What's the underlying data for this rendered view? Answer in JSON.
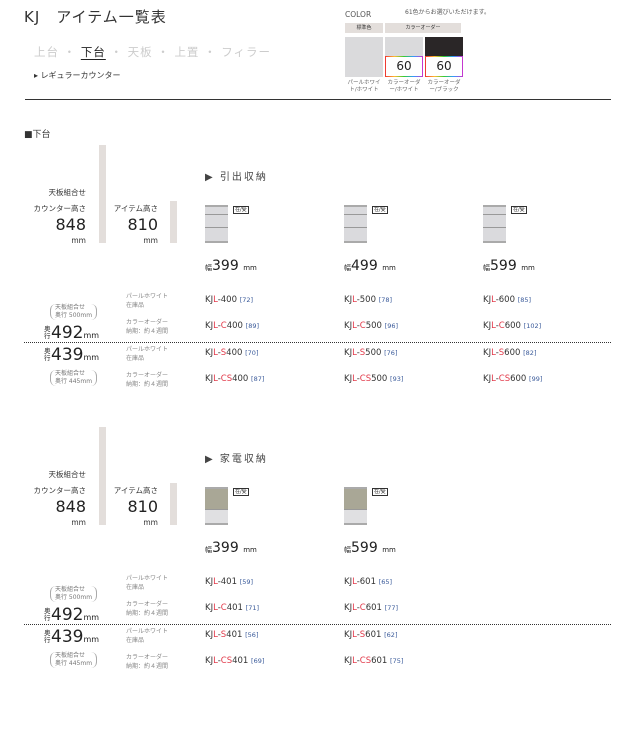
{
  "header": {
    "title": "KJ　アイテム一覧表",
    "nav": [
      "上台",
      "下台",
      "天板",
      "上置",
      "フィラー"
    ],
    "nav_active": 1,
    "subcategory": "レギュラーカウンター"
  },
  "color": {
    "label": "COLOR",
    "note": "61色からお選びいただけます。",
    "standard_header": "標準色",
    "order_header": "カラーオーダー",
    "swatches": [
      {
        "caption": "パールホワイト/ホワイト",
        "color": "#dadadc",
        "number": ""
      },
      {
        "caption": "カラーオーダー/ホワイト",
        "color": "#dadadc",
        "number": "60"
      },
      {
        "caption": "カラーオーダー/ブラック",
        "color": "#2a2627",
        "number": "60"
      }
    ]
  },
  "section_title": "■下台",
  "common": {
    "combo": "天板組合せ",
    "counter_height_label": "カウンター高さ",
    "counter_height": "848",
    "item_height_label": "アイテム高さ",
    "item_height": "810",
    "mm": "mm",
    "width_prefix": "幅",
    "badge": "在/受",
    "pearl": "パールホワイト",
    "stock": "在庫品",
    "order": "カラーオーダー",
    "lead": "納期：約４週間",
    "depth_kanji": "奥行",
    "depth1": "492",
    "depth1_note": [
      "天板組合せ",
      "奥行 500mm"
    ],
    "depth2": "439",
    "depth2_note": [
      "天板組合せ",
      "奥行 445mm"
    ]
  },
  "groups": [
    {
      "category": "▶ 引出収納",
      "type": "drawer",
      "widths": [
        "399",
        "499",
        "599"
      ],
      "rows": [
        [
          [
            "KJL-400",
            "72"
          ],
          [
            "KJL-500",
            "78"
          ],
          [
            "KJL-600",
            "85"
          ]
        ],
        [
          [
            "KJL-C400",
            "89"
          ],
          [
            "KJL-C500",
            "96"
          ],
          [
            "KJL-C600",
            "102"
          ]
        ],
        [
          [
            "KJL-S400",
            "70"
          ],
          [
            "KJL-S500",
            "76"
          ],
          [
            "KJL-S600",
            "82"
          ]
        ],
        [
          [
            "KJL-CS400",
            "87"
          ],
          [
            "KJL-CS500",
            "93"
          ],
          [
            "KJL-CS600",
            "99"
          ]
        ]
      ]
    },
    {
      "category": "▶ 家電収納",
      "type": "appliance",
      "widths": [
        "399",
        "599"
      ],
      "rows": [
        [
          [
            "KJL-401",
            "59"
          ],
          [
            "KJL-601",
            "65"
          ]
        ],
        [
          [
            "KJL-C401",
            "71"
          ],
          [
            "KJL-C601",
            "77"
          ]
        ],
        [
          [
            "KJL-S401",
            "56"
          ],
          [
            "KJL-S601",
            "62"
          ]
        ],
        [
          [
            "KJL-CS401",
            "69"
          ],
          [
            "KJL-CS601",
            "75"
          ]
        ]
      ]
    }
  ]
}
